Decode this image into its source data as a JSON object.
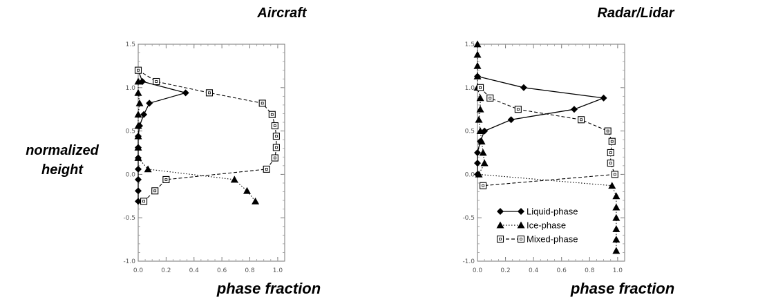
{
  "labels": {
    "ylabel_line1": "normalized",
    "ylabel_line2": "height",
    "xlabel": "phase fraction"
  },
  "legend": {
    "liquid": "Liquid-phase",
    "ice": "Ice-phase",
    "mixed": "Mixed-phase"
  },
  "chart_data": [
    {
      "type": "line",
      "title": "Aircraft",
      "xlabel": "phase fraction",
      "ylabel": "normalized height",
      "xlim": [
        0,
        1.05
      ],
      "ylim": [
        -1.0,
        1.5
      ],
      "xticks": [
        "0.0",
        "0.2",
        "0.4",
        "0.6",
        "0.8",
        "1.0"
      ],
      "yticks": [
        "-1.0",
        "-0.5",
        "0.0",
        "0.5",
        "1.0",
        "1.5"
      ],
      "grid": false,
      "series": [
        {
          "name": "Liquid-phase",
          "marker": "diamond",
          "style": "solid",
          "points": [
            [
              0.0,
              1.2
            ],
            [
              0.03,
              1.07
            ],
            [
              0.34,
              0.94
            ],
            [
              0.08,
              0.82
            ],
            [
              0.04,
              0.69
            ],
            [
              0.01,
              0.56
            ],
            [
              0.0,
              0.44
            ],
            [
              0.0,
              0.31
            ],
            [
              0.0,
              0.19
            ],
            [
              0.0,
              0.06
            ],
            [
              0.0,
              -0.06
            ],
            [
              0.0,
              -0.19
            ],
            [
              0.0,
              -0.31
            ]
          ]
        },
        {
          "name": "Ice-phase",
          "marker": "triangle",
          "style": "dotted",
          "points": [
            [
              0.0,
              1.07
            ],
            [
              0.0,
              0.94
            ],
            [
              0.01,
              0.82
            ],
            [
              0.0,
              0.69
            ],
            [
              0.0,
              0.56
            ],
            [
              0.0,
              0.44
            ],
            [
              0.0,
              0.31
            ],
            [
              0.0,
              0.19
            ],
            [
              0.07,
              0.06
            ],
            [
              0.69,
              -0.06
            ],
            [
              0.78,
              -0.19
            ],
            [
              0.84,
              -0.31
            ]
          ]
        },
        {
          "name": "Mixed-phase",
          "marker": "square",
          "style": "dashed",
          "points": [
            [
              0.0,
              1.2
            ],
            [
              0.13,
              1.07
            ],
            [
              0.51,
              0.94
            ],
            [
              0.89,
              0.82
            ],
            [
              0.96,
              0.69
            ],
            [
              0.98,
              0.56
            ],
            [
              0.99,
              0.44
            ],
            [
              0.99,
              0.31
            ],
            [
              0.98,
              0.19
            ],
            [
              0.92,
              0.06
            ],
            [
              0.2,
              -0.06
            ],
            [
              0.12,
              -0.19
            ],
            [
              0.04,
              -0.31
            ]
          ]
        }
      ]
    },
    {
      "type": "line",
      "title": "Radar/Lidar",
      "xlabel": "phase fraction",
      "ylabel": "",
      "xlim": [
        0,
        1.05
      ],
      "ylim": [
        -1.0,
        1.5
      ],
      "xticks": [
        "0.0",
        "0.2",
        "0.4",
        "0.6",
        "0.8",
        "1.0"
      ],
      "yticks": [
        "-1.0",
        "-0.5",
        "0.0",
        "0.5",
        "1.0",
        "1.5"
      ],
      "grid": false,
      "legend_position": "lower-left",
      "series": [
        {
          "name": "Liquid-phase",
          "marker": "diamond",
          "style": "solid",
          "points": [
            [
              0.0,
              1.13
            ],
            [
              0.33,
              1.0
            ],
            [
              0.9,
              0.88
            ],
            [
              0.69,
              0.75
            ],
            [
              0.24,
              0.63
            ],
            [
              0.05,
              0.5
            ],
            [
              0.02,
              0.38
            ],
            [
              0.0,
              0.25
            ],
            [
              0.0,
              0.13
            ],
            [
              0.0,
              0.0
            ]
          ]
        },
        {
          "name": "Ice-phase",
          "marker": "triangle",
          "style": "dotted",
          "points": [
            [
              0.0,
              1.5
            ],
            [
              0.0,
              1.38
            ],
            [
              0.0,
              1.25
            ],
            [
              0.0,
              1.13
            ],
            [
              0.0,
              1.0
            ],
            [
              0.02,
              0.88
            ],
            [
              0.02,
              0.75
            ],
            [
              0.01,
              0.63
            ],
            [
              0.02,
              0.5
            ],
            [
              0.03,
              0.38
            ],
            [
              0.04,
              0.25
            ],
            [
              0.05,
              0.13
            ],
            [
              0.01,
              0.0
            ],
            [
              0.96,
              -0.13
            ],
            [
              0.99,
              -0.25
            ],
            [
              0.99,
              -0.38
            ],
            [
              0.99,
              -0.5
            ],
            [
              0.99,
              -0.63
            ],
            [
              0.99,
              -0.75
            ],
            [
              0.99,
              -0.88
            ]
          ]
        },
        {
          "name": "Mixed-phase",
          "marker": "square",
          "style": "dashed",
          "points": [
            [
              0.02,
              1.0
            ],
            [
              0.09,
              0.88
            ],
            [
              0.29,
              0.75
            ],
            [
              0.74,
              0.63
            ],
            [
              0.93,
              0.5
            ],
            [
              0.96,
              0.38
            ],
            [
              0.95,
              0.25
            ],
            [
              0.95,
              0.13
            ],
            [
              0.98,
              0.0
            ],
            [
              0.04,
              -0.13
            ]
          ]
        }
      ]
    }
  ]
}
